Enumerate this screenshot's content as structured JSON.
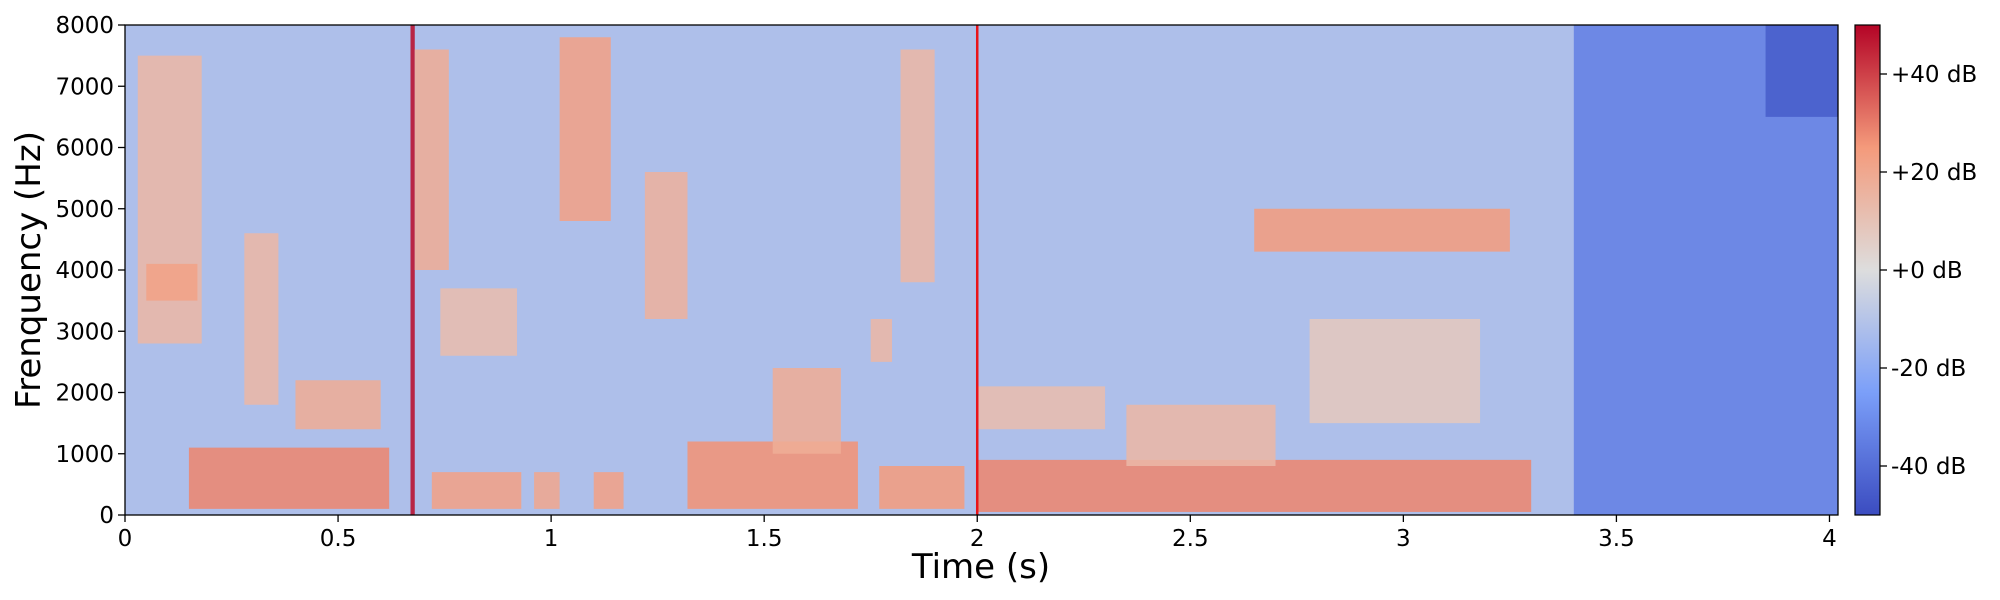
{
  "chart_data": {
    "type": "heatmap",
    "subtype": "spectrogram",
    "title": "",
    "xlabel": "Time (s)",
    "ylabel": "Frenquency (Hz)",
    "xlim": [
      0,
      4.02
    ],
    "ylim": [
      0,
      8000
    ],
    "x_ticks": [
      0,
      0.5,
      1,
      1.5,
      2,
      2.5,
      3,
      3.5,
      4
    ],
    "x_tick_labels": [
      "0",
      "0.5",
      "1",
      "1.5",
      "2",
      "2.5",
      "3",
      "3.5",
      "4"
    ],
    "y_ticks": [
      0,
      1000,
      2000,
      3000,
      4000,
      5000,
      6000,
      7000,
      8000
    ],
    "y_tick_labels": [
      "0",
      "1000",
      "2000",
      "3000",
      "4000",
      "5000",
      "6000",
      "7000",
      "8000"
    ],
    "colormap": "coolwarm",
    "colorbar": {
      "range": [
        -50,
        50
      ],
      "ticks": [
        40,
        20,
        0,
        -20,
        -40
      ],
      "tick_labels": [
        "+40 dB",
        "+20 dB",
        "+0 dB",
        "-20 dB",
        "-40 dB"
      ]
    },
    "marker_line": {
      "x": 2.0,
      "color": "#e8141a"
    },
    "background_level_db": -12,
    "high_energy_regions": [
      {
        "t_start": 0.03,
        "t_end": 0.18,
        "f_low": 2800,
        "f_high": 7500,
        "level_db": 14
      },
      {
        "t_start": 0.05,
        "t_end": 0.17,
        "f_low": 3500,
        "f_high": 4100,
        "level_db": 22
      },
      {
        "t_start": 0.15,
        "t_end": 0.62,
        "f_low": 100,
        "f_high": 1100,
        "level_db": 28
      },
      {
        "t_start": 0.28,
        "t_end": 0.36,
        "f_low": 1800,
        "f_high": 4600,
        "level_db": 14
      },
      {
        "t_start": 0.4,
        "t_end": 0.6,
        "f_low": 1400,
        "f_high": 2200,
        "level_db": 18
      },
      {
        "t_start": 0.68,
        "t_end": 0.76,
        "f_low": 4000,
        "f_high": 7600,
        "level_db": 18
      },
      {
        "t_start": 0.72,
        "t_end": 0.93,
        "f_low": 100,
        "f_high": 700,
        "level_db": 22
      },
      {
        "t_start": 0.74,
        "t_end": 0.92,
        "f_low": 2600,
        "f_high": 3700,
        "level_db": 12
      },
      {
        "t_start": 0.96,
        "t_end": 1.02,
        "f_low": 100,
        "f_high": 700,
        "level_db": 20
      },
      {
        "t_start": 1.02,
        "t_end": 1.14,
        "f_low": 4800,
        "f_high": 7800,
        "level_db": 22
      },
      {
        "t_start": 1.1,
        "t_end": 1.17,
        "f_low": 100,
        "f_high": 700,
        "level_db": 22
      },
      {
        "t_start": 1.22,
        "t_end": 1.32,
        "f_low": 3200,
        "f_high": 5600,
        "level_db": 16
      },
      {
        "t_start": 1.32,
        "t_end": 1.72,
        "f_low": 100,
        "f_high": 1200,
        "level_db": 26
      },
      {
        "t_start": 1.52,
        "t_end": 1.68,
        "f_low": 1000,
        "f_high": 2400,
        "level_db": 18
      },
      {
        "t_start": 1.75,
        "t_end": 1.8,
        "f_low": 2500,
        "f_high": 3200,
        "level_db": 14
      },
      {
        "t_start": 1.77,
        "t_end": 1.97,
        "f_low": 100,
        "f_high": 800,
        "level_db": 24
      },
      {
        "t_start": 1.82,
        "t_end": 1.9,
        "f_low": 3800,
        "f_high": 7600,
        "level_db": 14
      },
      {
        "t_start": 2.0,
        "t_end": 3.3,
        "f_low": 50,
        "f_high": 900,
        "level_db": 28
      },
      {
        "t_start": 2.0,
        "t_end": 2.3,
        "f_low": 1400,
        "f_high": 2100,
        "level_db": 12
      },
      {
        "t_start": 2.35,
        "t_end": 2.7,
        "f_low": 800,
        "f_high": 1800,
        "level_db": 14
      },
      {
        "t_start": 2.65,
        "t_end": 3.25,
        "f_low": 4300,
        "f_high": 5000,
        "level_db": 24
      },
      {
        "t_start": 2.78,
        "t_end": 3.18,
        "f_low": 1500,
        "f_high": 3200,
        "level_db": 8
      }
    ],
    "low_energy_regions": [
      {
        "t_start": 0.67,
        "t_end": 0.68,
        "f_low": 0,
        "f_high": 8000,
        "level_db": 48
      },
      {
        "t_start": 3.4,
        "t_end": 4.02,
        "f_low": 0,
        "f_high": 8000,
        "level_db": -34
      },
      {
        "t_start": 3.85,
        "t_end": 4.02,
        "f_low": 6500,
        "f_high": 8000,
        "level_db": -45
      }
    ]
  }
}
